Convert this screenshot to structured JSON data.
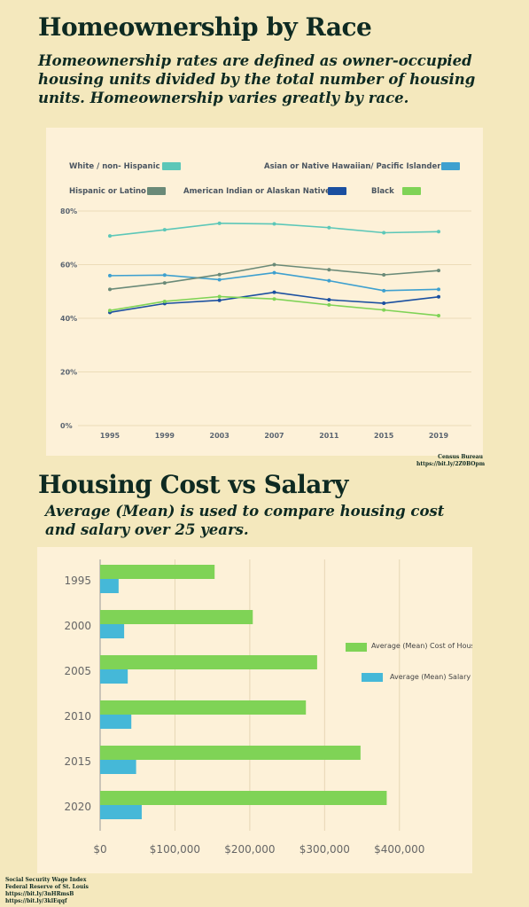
{
  "section1": {
    "title": "Homeownership by Race",
    "subtitle": "Homeownership rates are defined as owner-occupied housing units divided by the total number of housing units. Homeownership varies greatly by race.",
    "source_lines": [
      "Census Bureau",
      "https://bit.ly/2Z0BOpm"
    ]
  },
  "section2": {
    "title": "Housing Cost vs Salary",
    "subtitle": "Average (Mean) is used to compare housing cost and salary over 25 years.",
    "source_lines": [
      "Social Security Wage Index",
      "Federal Reserve of St. Louis",
      "https://bit.ly/3nHRmsB",
      "https://bit.ly/3klEqqf"
    ]
  },
  "chart_data": [
    {
      "type": "line",
      "x": [
        "1995",
        "1999",
        "2003",
        "2007",
        "2011",
        "2015",
        "2019"
      ],
      "y_ticks": [
        "0%",
        "20%",
        "40%",
        "60%",
        "80%"
      ],
      "ylim": [
        0,
        80
      ],
      "grid": true,
      "legend_position": "top",
      "series": [
        {
          "name": "White / non- Hispanic",
          "color": "#5cc7b8",
          "values": [
            70.7,
            73,
            75.4,
            75.2,
            73.8,
            71.9,
            72.3
          ]
        },
        {
          "name": "Asian or Native Hawaiian/ Pacific Islander",
          "color": "#3ea0cf",
          "values": [
            55.9,
            56.1,
            54.4,
            57,
            54,
            50.3,
            50.8
          ]
        },
        {
          "name": "Hispanic or Latino",
          "color": "#6a8a78",
          "values": [
            50.8,
            53.2,
            56.3,
            60,
            58.1,
            56.2,
            57.8
          ]
        },
        {
          "name": "American Indian or Alaskan Native",
          "color": "#1a4fa0",
          "values": [
            42.2,
            45.5,
            46.7,
            49.7,
            46.9,
            45.6,
            48
          ]
        },
        {
          "name": "Black",
          "color": "#7fd356",
          "values": [
            42.9,
            46.3,
            48.1,
            47.2,
            45,
            43.1,
            41
          ]
        }
      ]
    },
    {
      "type": "bar",
      "orientation": "horizontal",
      "categories": [
        "1995",
        "2000",
        "2005",
        "2010",
        "2015",
        "2020"
      ],
      "x_ticks": [
        "$0",
        "$100,000",
        "$200,000",
        "$300,000",
        "$400,000"
      ],
      "xlim": [
        0,
        450000
      ],
      "grid": true,
      "legend_position": "right",
      "series": [
        {
          "name": "Average (Mean) Cost of House",
          "color": "#7fd356",
          "values": [
            153000,
            204000,
            290000,
            275000,
            348000,
            383000
          ]
        },
        {
          "name": "Average (Mean) Salary",
          "color": "#45b8d8",
          "values": [
            24700,
            32100,
            36900,
            41700,
            48100,
            55600
          ]
        }
      ]
    }
  ]
}
